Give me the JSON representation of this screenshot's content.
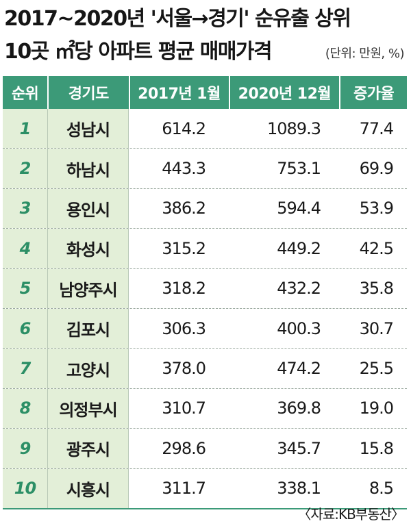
{
  "title_line1": "2017~2020년 '서울→경기' 순유출 상위",
  "title_line2": "10곳 ㎡당 아파트 평균 매매가격",
  "unit": "(단위: 만원, %)",
  "source": "〈자료:KB부동산〉",
  "colors": {
    "header_bg": "#3c9a78",
    "row_tint": "#e3efd8",
    "rank_text": "#2c8f66"
  },
  "chart_data": {
    "type": "table",
    "title": "2017~2020년 '서울→경기' 순유출 상위 10곳 ㎡당 아파트 평균 매매가격",
    "columns": [
      "순위",
      "경기도",
      "2017년 1월",
      "2020년 12월",
      "증가율"
    ],
    "rows": [
      {
        "rank": "1",
        "city": "성남시",
        "v2017": "614.2",
        "v2020": "1089.3",
        "rate": "77.4"
      },
      {
        "rank": "2",
        "city": "하남시",
        "v2017": "443.3",
        "v2020": "753.1",
        "rate": "69.9"
      },
      {
        "rank": "3",
        "city": "용인시",
        "v2017": "386.2",
        "v2020": "594.4",
        "rate": "53.9"
      },
      {
        "rank": "4",
        "city": "화성시",
        "v2017": "315.2",
        "v2020": "449.2",
        "rate": "42.5"
      },
      {
        "rank": "5",
        "city": "남양주시",
        "v2017": "318.2",
        "v2020": "432.2",
        "rate": "35.8"
      },
      {
        "rank": "6",
        "city": "김포시",
        "v2017": "306.3",
        "v2020": "400.3",
        "rate": "30.7"
      },
      {
        "rank": "7",
        "city": "고양시",
        "v2017": "378.0",
        "v2020": "474.2",
        "rate": "25.5"
      },
      {
        "rank": "8",
        "city": "의정부시",
        "v2017": "310.7",
        "v2020": "369.8",
        "rate": "19.0"
      },
      {
        "rank": "9",
        "city": "광주시",
        "v2017": "298.6",
        "v2020": "345.7",
        "rate": "15.8"
      },
      {
        "rank": "10",
        "city": "시흥시",
        "v2017": "311.7",
        "v2020": "338.1",
        "rate": "8.5"
      }
    ]
  }
}
